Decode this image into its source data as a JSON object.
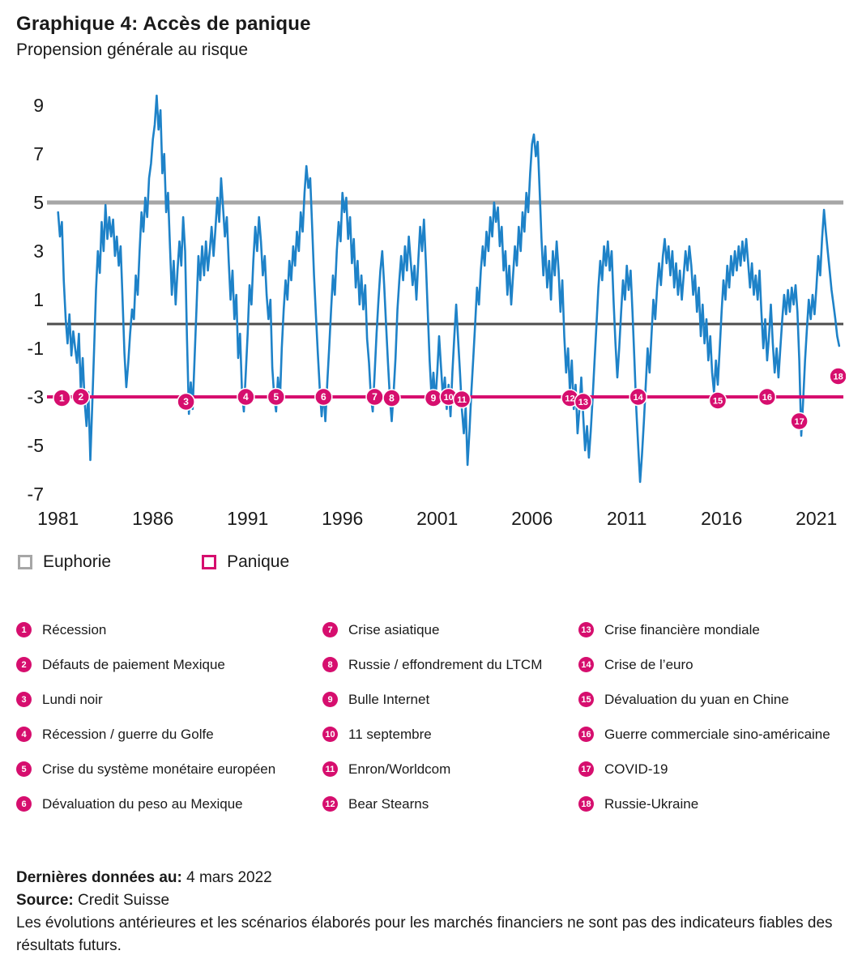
{
  "title": "Graphique 4: Accès de panique",
  "subtitle": "Propension générale au risque",
  "colors": {
    "line": "#1e82c8",
    "panic": "#d60e6e",
    "euphoria": "#a6a6a6",
    "zero": "#4d4d4d",
    "text": "#1a1a1a"
  },
  "legend": [
    {
      "label": "Euphorie",
      "color": "#a6a6a6"
    },
    {
      "label": "Panique",
      "color": "#d60e6e"
    }
  ],
  "chart_data": {
    "type": "line",
    "series_name": "Propension générale au risque",
    "xlabel": "",
    "ylabel": "",
    "xlim": [
      1980.5,
      2022.6
    ],
    "ylim": [
      -7.6,
      9.8
    ],
    "grid": false,
    "x_ticks": [
      1981,
      1986,
      1991,
      1996,
      2001,
      2006,
      2011,
      2016,
      2021
    ],
    "y_ticks": [
      9,
      7,
      5,
      3,
      1,
      -1,
      -3,
      -5,
      -7
    ],
    "reference_lines": [
      {
        "label": "Euphorie",
        "value": 5,
        "color": "#a6a6a6"
      },
      {
        "label": "",
        "value": 0,
        "color": "#4d4d4d"
      },
      {
        "label": "Panique",
        "value": -3,
        "color": "#d60e6e"
      }
    ],
    "x_start": 1981.0,
    "x_step": 0.1,
    "values": [
      4.6,
      3.6,
      4.2,
      1.8,
      0.2,
      -0.8,
      0.4,
      -1.3,
      -0.3,
      -1.0,
      -1.6,
      -0.4,
      -2.8,
      -1.4,
      -3.2,
      -4.2,
      -2.8,
      -5.6,
      -3.4,
      -1.0,
      1.4,
      3.0,
      2.1,
      4.2,
      3.0,
      4.9,
      3.5,
      4.4,
      3.6,
      4.3,
      2.8,
      3.6,
      2.4,
      3.2,
      1.0,
      -1.2,
      -2.6,
      -1.6,
      -0.4,
      0.6,
      0.2,
      2.0,
      1.2,
      3.0,
      4.6,
      3.8,
      5.2,
      4.4,
      6.0,
      6.6,
      7.6,
      8.2,
      9.4,
      8.0,
      8.8,
      6.2,
      7.0,
      4.6,
      5.4,
      3.2,
      1.2,
      2.6,
      0.8,
      2.2,
      3.4,
      2.4,
      4.4,
      3.0,
      -0.6,
      -3.7,
      -2.4,
      -3.5,
      -1.4,
      0.6,
      2.8,
      1.8,
      3.2,
      2.0,
      3.4,
      2.2,
      3.0,
      4.0,
      2.8,
      3.9,
      5.2,
      4.2,
      6.0,
      4.8,
      3.6,
      4.4,
      2.6,
      1.0,
      2.2,
      0.2,
      1.2,
      -1.4,
      -0.4,
      -2.8,
      -3.6,
      -2.0,
      -0.4,
      1.6,
      0.8,
      2.6,
      4.0,
      3.0,
      4.4,
      3.4,
      2.0,
      2.8,
      1.2,
      0.2,
      1.0,
      -1.8,
      -3.0,
      -3.6,
      -2.2,
      -3.2,
      -1.0,
      0.6,
      1.8,
      1.0,
      2.6,
      1.8,
      3.2,
      2.4,
      3.8,
      3.0,
      4.6,
      3.8,
      5.4,
      6.5,
      5.6,
      6.0,
      4.0,
      2.0,
      0.4,
      -1.2,
      -2.6,
      -3.8,
      -2.8,
      -4.0,
      -2.4,
      -1.0,
      0.6,
      2.0,
      1.2,
      3.0,
      4.2,
      3.4,
      5.4,
      4.6,
      5.2,
      3.5,
      4.4,
      2.5,
      3.5,
      1.5,
      2.6,
      0.8,
      2.0,
      0.6,
      1.6,
      -0.6,
      -1.6,
      -3.0,
      -3.6,
      -2.0,
      -0.4,
      1.0,
      2.2,
      3.0,
      1.6,
      0.0,
      -1.6,
      -3.0,
      -4.0,
      -2.8,
      -1.4,
      0.6,
      1.8,
      2.8,
      1.8,
      3.2,
      2.2,
      3.6,
      2.6,
      1.6,
      2.4,
      1.0,
      2.6,
      4.0,
      3.0,
      4.3,
      2.5,
      0.5,
      -1.5,
      -3.0,
      -2.0,
      -3.2,
      -2.0,
      -0.5,
      -1.8,
      -3.0,
      -2.2,
      -3.5,
      -2.5,
      -3.8,
      -2.0,
      -0.5,
      0.8,
      -0.6,
      -2.0,
      -3.5,
      -4.5,
      -3.4,
      -5.8,
      -4.4,
      -2.8,
      -1.4,
      0.0,
      1.5,
      0.8,
      2.2,
      3.2,
      2.4,
      3.8,
      3.0,
      4.4,
      3.6,
      5.0,
      4.2,
      4.8,
      3.2,
      4.0,
      2.2,
      3.0,
      1.2,
      2.4,
      0.8,
      2.0,
      3.2,
      2.4,
      4.0,
      3.0,
      4.6,
      3.8,
      5.4,
      4.6,
      6.2,
      7.4,
      7.8,
      6.9,
      7.5,
      5.5,
      3.5,
      2.0,
      3.2,
      1.5,
      2.6,
      1.0,
      3.0,
      2.0,
      3.4,
      2.2,
      0.5,
      1.8,
      -0.5,
      -2.0,
      -1.0,
      -2.8,
      -1.5,
      -3.5,
      -2.5,
      -4.5,
      -3.5,
      -2.2,
      -3.8,
      -5.2,
      -4.2,
      -5.5,
      -4.4,
      -3.0,
      -1.5,
      0.0,
      1.5,
      2.6,
      1.8,
      3.2,
      2.4,
      3.4,
      2.2,
      3.0,
      1.0,
      -0.8,
      -2.2,
      -1.0,
      0.5,
      1.8,
      1.0,
      2.4,
      1.4,
      2.2,
      0.5,
      -1.5,
      -3.5,
      -5.0,
      -6.5,
      -5.4,
      -4.0,
      -2.5,
      -1.0,
      -2.0,
      -0.5,
      1.0,
      0.2,
      1.5,
      2.5,
      1.6,
      2.8,
      3.5,
      2.5,
      3.2,
      2.0,
      3.0,
      1.5,
      2.5,
      1.2,
      2.2,
      1.0,
      2.0,
      3.0,
      2.2,
      3.2,
      2.4,
      1.2,
      2.0,
      0.5,
      1.5,
      -0.5,
      0.8,
      -0.8,
      0.2,
      -1.5,
      -0.5,
      -2.0,
      -2.8,
      -1.5,
      -2.5,
      -1.0,
      0.5,
      1.8,
      1.0,
      2.4,
      1.5,
      2.8,
      2.0,
      3.0,
      2.2,
      3.2,
      2.4,
      3.4,
      2.6,
      3.5,
      2.5,
      1.5,
      2.5,
      1.2,
      2.0,
      1.0,
      2.2,
      0.5,
      -1.0,
      0.2,
      -1.5,
      -0.5,
      0.8,
      -0.8,
      -2.0,
      -1.0,
      -2.2,
      -1.0,
      0.2,
      1.2,
      0.4,
      1.4,
      0.5,
      1.5,
      0.8,
      1.6,
      0.5,
      -1.5,
      -4.6,
      -3.2,
      -1.5,
      -0.2,
      1.0,
      0.2,
      1.2,
      0.4,
      1.5,
      2.8,
      2.0,
      3.5,
      4.7,
      3.8,
      3.0,
      2.2,
      1.4,
      0.8,
      0.2,
      -0.5,
      -0.9
    ],
    "event_markers": [
      {
        "n": 1,
        "x": 1981.2,
        "y": -3.05
      },
      {
        "n": 2,
        "x": 1982.2,
        "y": -3.0
      },
      {
        "n": 3,
        "x": 1987.75,
        "y": -3.2
      },
      {
        "n": 4,
        "x": 1990.9,
        "y": -3.0
      },
      {
        "n": 5,
        "x": 1992.5,
        "y": -3.0
      },
      {
        "n": 6,
        "x": 1995.0,
        "y": -3.0
      },
      {
        "n": 7,
        "x": 1997.7,
        "y": -3.0
      },
      {
        "n": 8,
        "x": 1998.6,
        "y": -3.05
      },
      {
        "n": 9,
        "x": 2000.8,
        "y": -3.05
      },
      {
        "n": 10,
        "x": 2001.6,
        "y": -3.0
      },
      {
        "n": 11,
        "x": 2002.3,
        "y": -3.1
      },
      {
        "n": 12,
        "x": 2008.0,
        "y": -3.05
      },
      {
        "n": 13,
        "x": 2008.7,
        "y": -3.2
      },
      {
        "n": 14,
        "x": 2011.6,
        "y": -3.0
      },
      {
        "n": 15,
        "x": 2015.8,
        "y": -3.15
      },
      {
        "n": 16,
        "x": 2018.4,
        "y": -3.0
      },
      {
        "n": 17,
        "x": 2020.1,
        "y": -4.0
      },
      {
        "n": 18,
        "x": 2022.15,
        "y": -2.15
      }
    ]
  },
  "events": [
    {
      "n": 1,
      "label": "Récession"
    },
    {
      "n": 2,
      "label": "Défauts de paiement Mexique"
    },
    {
      "n": 3,
      "label": "Lundi noir"
    },
    {
      "n": 4,
      "label": "Récession / guerre du Golfe"
    },
    {
      "n": 5,
      "label": "Crise du système monétaire européen"
    },
    {
      "n": 6,
      "label": "Dévaluation du peso au Mexique"
    },
    {
      "n": 7,
      "label": "Crise asiatique"
    },
    {
      "n": 8,
      "label": "Russie / effondrement du LTCM"
    },
    {
      "n": 9,
      "label": "Bulle Internet"
    },
    {
      "n": 10,
      "label": "11 septembre"
    },
    {
      "n": 11,
      "label": "Enron/Worldcom"
    },
    {
      "n": 12,
      "label": "Bear Stearns"
    },
    {
      "n": 13,
      "label": "Crise financière mondiale"
    },
    {
      "n": 14,
      "label": "Crise de l’euro"
    },
    {
      "n": 15,
      "label": "Dévaluation du yuan en Chine"
    },
    {
      "n": 16,
      "label": "Guerre commerciale sino-américaine"
    },
    {
      "n": 17,
      "label": "COVID-19"
    },
    {
      "n": 18,
      "label": "Russie-Ukraine"
    }
  ],
  "footer": {
    "last_data_label": "Dernières données au:",
    "last_data_value": "4 mars 2022",
    "source_label": "Source:",
    "source_value": "Credit Suisse",
    "disclaimer": "Les évolutions antérieures et les scénarios élaborés pour les marchés financiers ne sont pas des indicateurs fiables des résultats futurs."
  }
}
